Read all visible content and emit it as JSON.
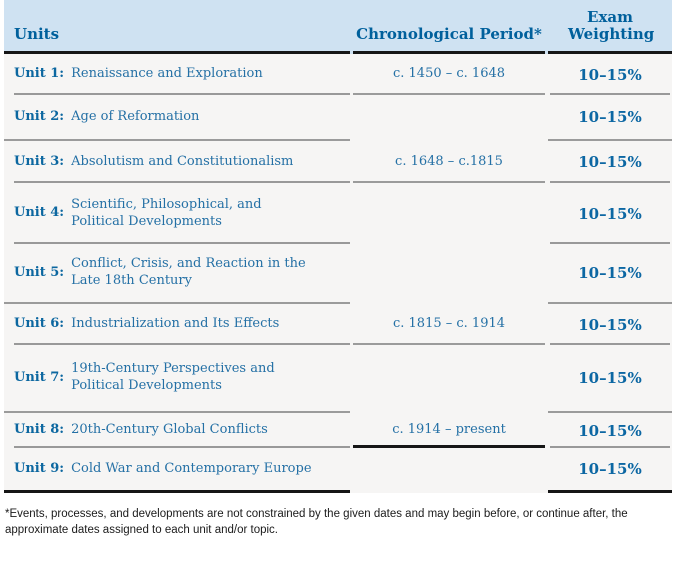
{
  "table": {
    "headers": {
      "units": "Units",
      "period": "Chronological Period*",
      "weighting": "Exam Weighting"
    },
    "groups": [
      {
        "period": "c. 1450 – c. 1648",
        "units": [
          {
            "label": "Unit 1:",
            "title": [
              "Renaissance and Exploration"
            ],
            "weight": "10–15%"
          },
          {
            "label": "Unit 2:",
            "title": [
              "Age of Reformation"
            ],
            "weight": "10–15%"
          }
        ]
      },
      {
        "period": "c. 1648 – c.1815",
        "units": [
          {
            "label": "Unit 3:",
            "title": [
              "Absolutism and Constitutionalism"
            ],
            "weight": "10–15%"
          },
          {
            "label": "Unit 4:",
            "title": [
              "Scientific, Philosophical, and",
              "Political Developments"
            ],
            "weight": "10–15%"
          },
          {
            "label": "Unit 5:",
            "title": [
              "Conflict, Crisis, and Reaction in the",
              "Late 18th Century"
            ],
            "weight": "10–15%"
          }
        ]
      },
      {
        "period": "c. 1815 – c. 1914",
        "units": [
          {
            "label": "Unit 6:",
            "title": [
              "Industrialization and Its Effects"
            ],
            "weight": "10–15%"
          },
          {
            "label": "Unit 7:",
            "title": [
              "19th-Century Perspectives and",
              "Political Developments"
            ],
            "weight": "10–15%"
          }
        ]
      },
      {
        "period": "c. 1914 – present",
        "units": [
          {
            "label": "Unit 8:",
            "title": [
              "20th-Century Global Conflicts"
            ],
            "weight": "10–15%"
          },
          {
            "label": "Unit 9:",
            "title": [
              "Cold War and Contemporary Europe"
            ],
            "weight": "10–15%"
          }
        ]
      }
    ]
  },
  "footnote": "*Events, processes, and developments are not constrained by the given dates and may begin before, or continue after, the approximate dates assigned to each unit and/or topic.",
  "colors": {
    "header_bg": "#cfe2f2",
    "header_text": "#00609c",
    "unit_label_text": "#0c67a0",
    "unit_title_text": "#2470a5",
    "weight_text": "#0c67a3",
    "row_bg": "#f6f5f4",
    "thin_separator": "#999999",
    "group_separator": "#9b9b9b",
    "black_rule": "#161616"
  }
}
